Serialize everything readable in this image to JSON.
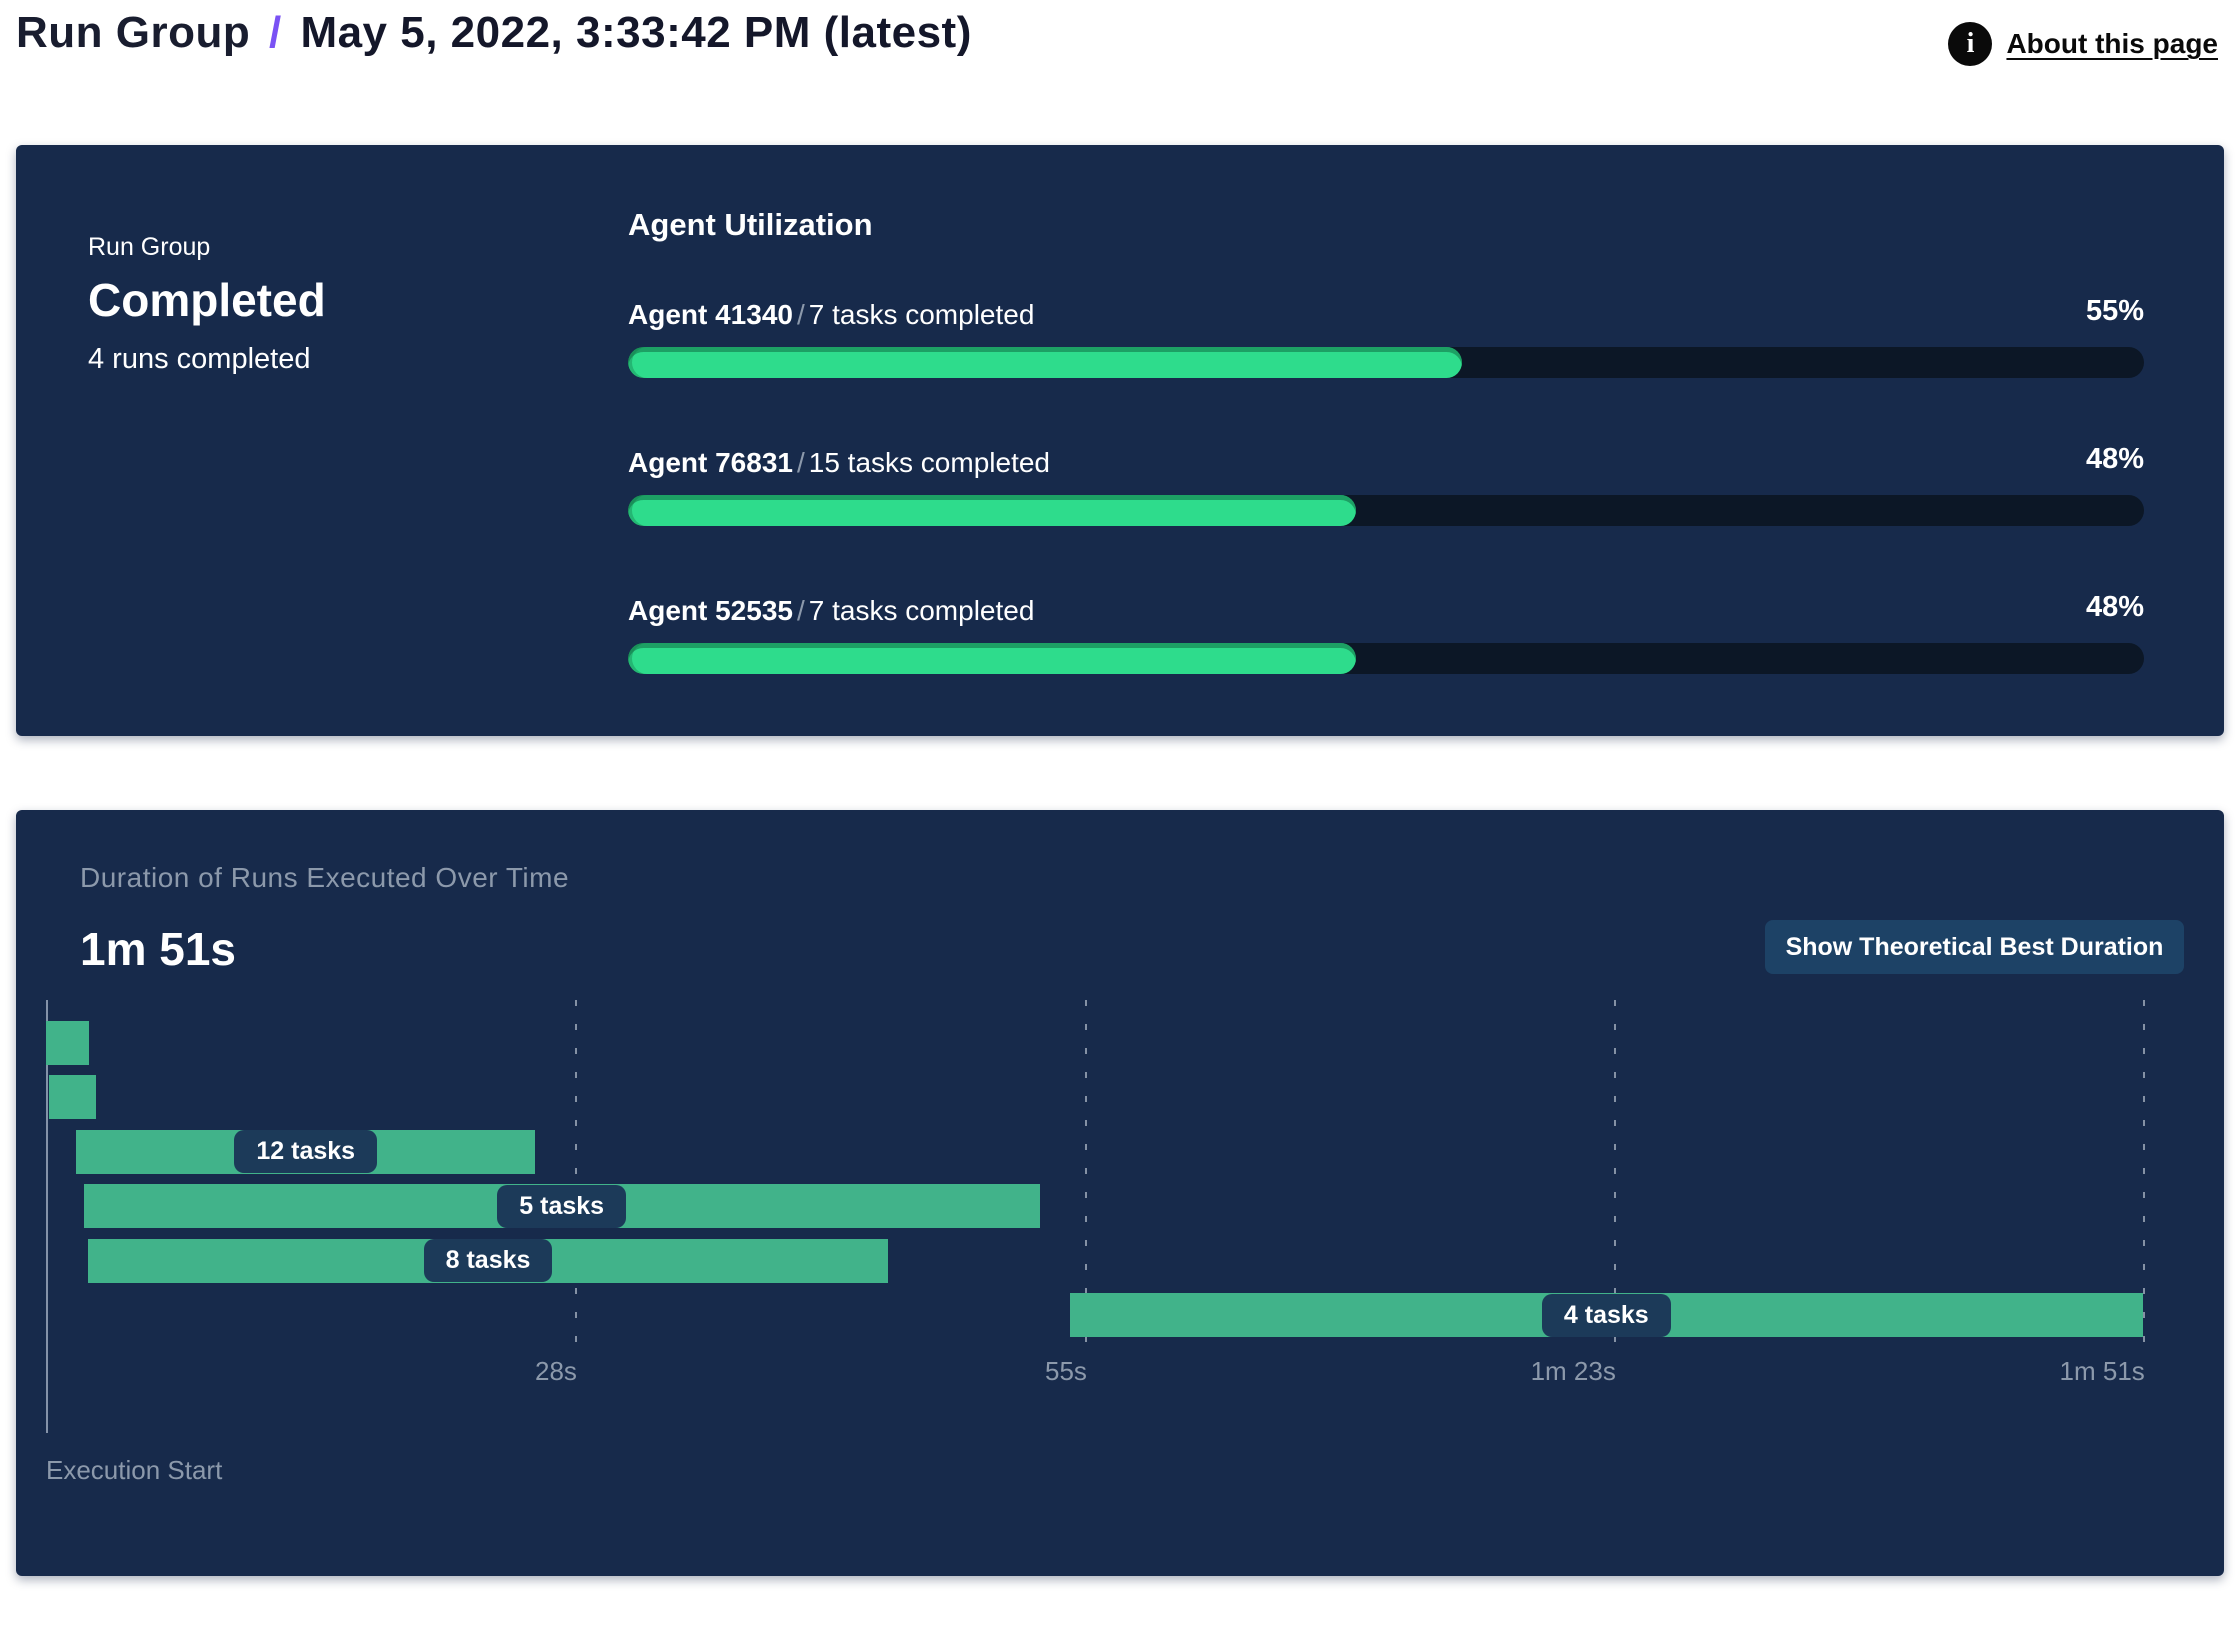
{
  "header": {
    "breadcrumb_root": "Run Group",
    "separator": "/",
    "title": "May 5, 2022, 3:33:42 PM (latest)",
    "about_link": "About this page"
  },
  "colors": {
    "panel_bg": "#172a4b",
    "progress_track": "#0c1726",
    "progress_fill": "#2edc8c",
    "gantt_bar": "#41b38a",
    "pill_bg": "#1c3a59",
    "button_bg": "#1d4266",
    "muted_text": "#8c99ab",
    "accent_purple": "#7a52f4"
  },
  "run_group_panel": {
    "label": "Run Group",
    "status": "Completed",
    "runs_completed": "4 runs completed",
    "section_title": "Agent Utilization",
    "separator": "/",
    "agents": [
      {
        "name": "Agent 41340",
        "tasks": "7 tasks completed",
        "utilization_pct": 55,
        "utilization_label": "55%"
      },
      {
        "name": "Agent 76831",
        "tasks": "15 tasks completed",
        "utilization_pct": 48,
        "utilization_label": "48%"
      },
      {
        "name": "Agent 52535",
        "tasks": "7 tasks completed",
        "utilization_pct": 48,
        "utilization_label": "48%"
      }
    ]
  },
  "duration_panel": {
    "title": "Duration of Runs Executed Over Time",
    "total_duration": "1m 51s",
    "button_label": "Show Theoretical Best Duration",
    "axis_label": "Execution Start"
  },
  "chart_data": {
    "type": "gantt",
    "title": "Duration of Runs Executed Over Time",
    "total_duration_label": "1m 51s",
    "x_axis_label": "Execution Start",
    "x_range_seconds": [
      0,
      111
    ],
    "grid": true,
    "x_ticks": [
      {
        "label": "28s",
        "seconds": 28
      },
      {
        "label": "55s",
        "seconds": 55
      },
      {
        "label": "1m 23s",
        "seconds": 83
      },
      {
        "label": "1m 51s",
        "seconds": 111
      }
    ],
    "bars": [
      {
        "label": null,
        "start_s": 0.0,
        "end_s": 2.3
      },
      {
        "label": null,
        "start_s": 0.15,
        "end_s": 2.65
      },
      {
        "label": "12 tasks",
        "start_s": 1.6,
        "end_s": 25.9
      },
      {
        "label": "5 tasks",
        "start_s": 2.0,
        "end_s": 52.6
      },
      {
        "label": "8 tasks",
        "start_s": 2.2,
        "end_s": 44.6
      },
      {
        "label": "4 tasks",
        "start_s": 54.2,
        "end_s": 111.0
      }
    ]
  }
}
